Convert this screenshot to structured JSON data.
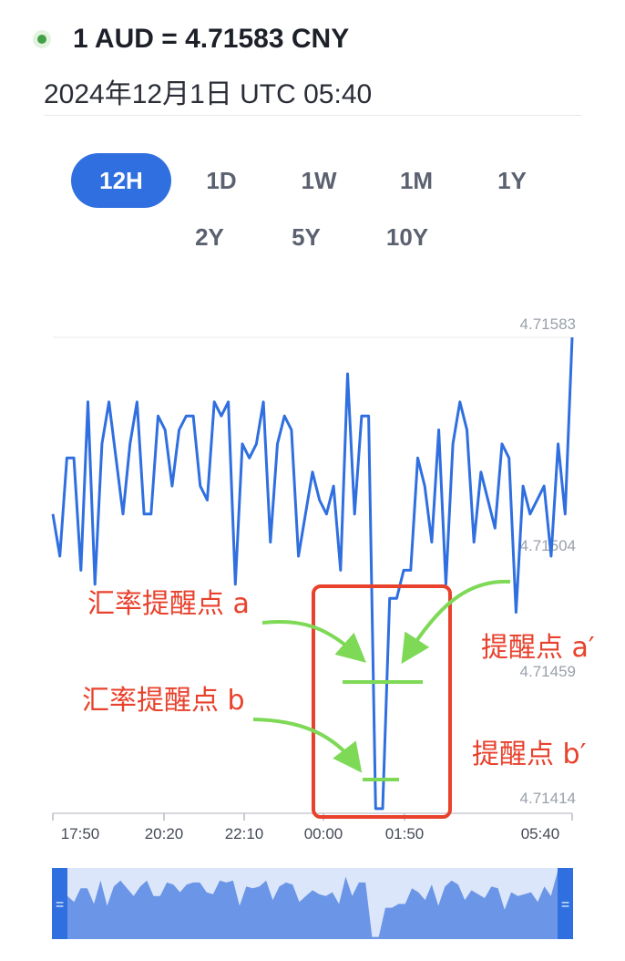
{
  "header": {
    "title": "1 AUD = 4.71583 CNY",
    "timestamp": "2024年12月1日 UTC 05:40"
  },
  "range_tabs": {
    "items": [
      "12H",
      "1D",
      "1W",
      "1M",
      "1Y",
      "2Y",
      "5Y",
      "10Y"
    ],
    "selected": "12H"
  },
  "colors": {
    "line": "#2f6fe0",
    "active_tab": "#2f6fe0",
    "highlight_box": "#e8412c",
    "annotation_text": "#e8412c",
    "annotation_arrow": "#7ed957",
    "navigator_fill": "#6b95e6"
  },
  "chart_data": {
    "type": "line",
    "title": "",
    "xlabel": "",
    "ylabel": "",
    "x_ticks": [
      "17:50",
      "20:20",
      "22:10",
      "00:00",
      "01:50",
      "05:40"
    ],
    "y_ticks": [
      "4.71583",
      "4.71504",
      "4.71459",
      "4.71414"
    ],
    "ylim": [
      4.714,
      4.7159
    ],
    "grid": "none",
    "series": [
      {
        "values": [
          4.7152,
          4.71505,
          4.7154,
          4.7154,
          4.715,
          4.7156,
          4.71495,
          4.71545,
          4.7156,
          4.7154,
          4.7152,
          4.71545,
          4.7156,
          4.7152,
          4.7152,
          4.71555,
          4.7155,
          4.7153,
          4.7155,
          4.71555,
          4.71555,
          4.7153,
          4.71525,
          4.7156,
          4.71555,
          4.7156,
          4.71495,
          4.71545,
          4.7154,
          4.71545,
          4.7156,
          4.7151,
          4.71545,
          4.71555,
          4.7155,
          4.71505,
          4.7152,
          4.71535,
          4.71525,
          4.7152,
          4.7153,
          4.715,
          4.7157,
          4.7152,
          4.71555,
          4.71555,
          4.71415,
          4.71415,
          4.7149,
          4.7149,
          4.715,
          4.715,
          4.7154,
          4.7153,
          4.7151,
          4.7155,
          4.71495,
          4.71545,
          4.7156,
          4.7155,
          4.7151,
          4.71535,
          4.71525,
          4.71515,
          4.71545,
          4.7154,
          4.71485,
          4.7153,
          4.7152,
          4.71525,
          4.7153,
          4.71505,
          4.71545,
          4.7152,
          4.71583
        ]
      }
    ]
  },
  "annotations": {
    "alert_point_a": "汇率提醒点 a",
    "alert_point_a_prime": "提醒点 a′",
    "alert_point_b": "汇率提醒点 b",
    "alert_point_b_prime": "提醒点 b′"
  },
  "navigator": {
    "left_handle": "=",
    "right_handle": "="
  }
}
